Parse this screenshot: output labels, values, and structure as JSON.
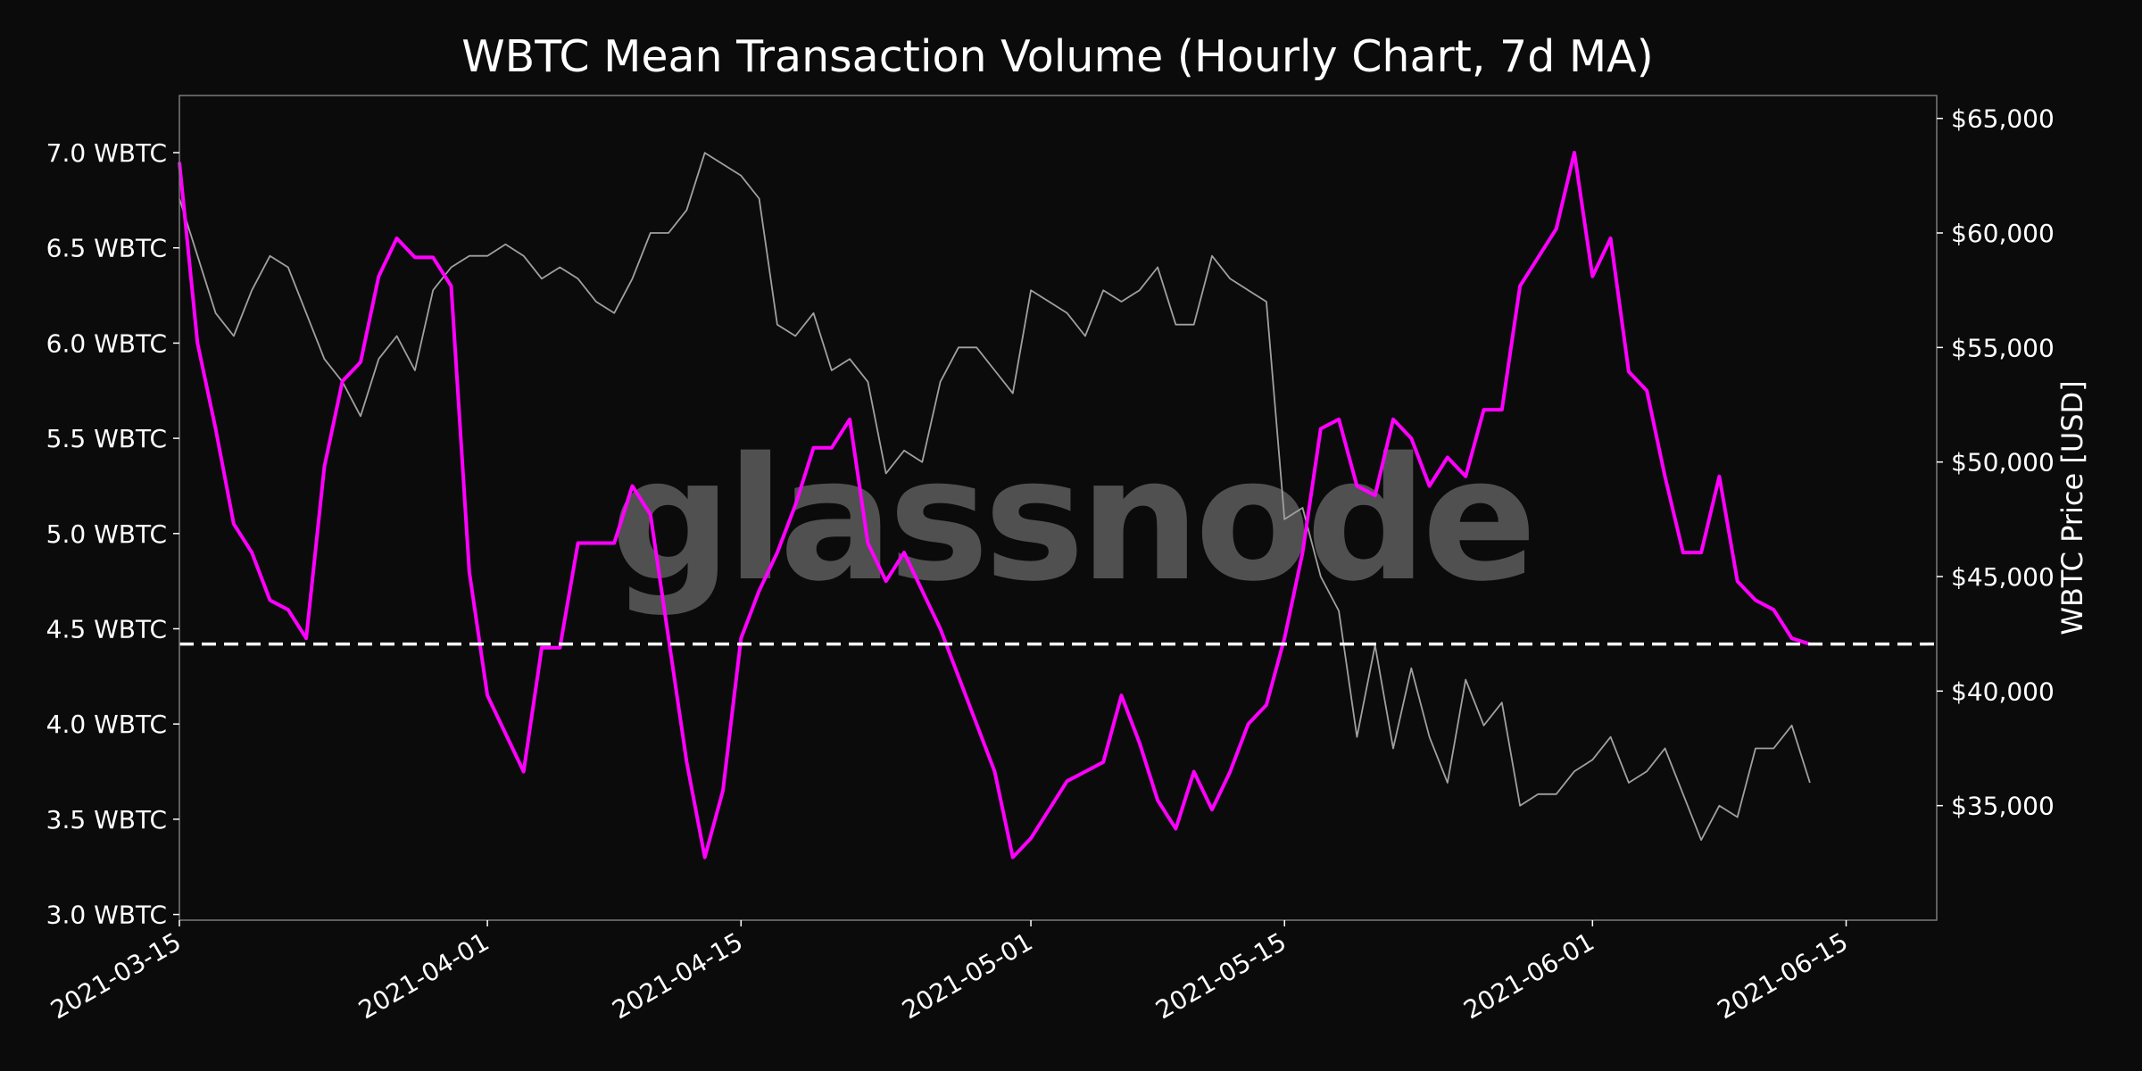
{
  "watermark": "glassnode",
  "chart_data": {
    "type": "line",
    "title": "WBTC Mean Transaction Volume (Hourly Chart, 7d MA)",
    "xlabel": "",
    "ylabel_left": "",
    "ylabel_right": "WBTC Price [USD]",
    "x_ticks": [
      "2021-03-15",
      "2021-04-01",
      "2021-04-15",
      "2021-05-01",
      "2021-05-15",
      "2021-06-01",
      "2021-06-15"
    ],
    "xlim": [
      "2021-03-15",
      "2021-06-20"
    ],
    "y_left_ticks": [
      "3.0 WBTC",
      "3.5 WBTC",
      "4.0 WBTC",
      "4.5 WBTC",
      "5.0 WBTC",
      "5.5 WBTC",
      "6.0 WBTC",
      "6.5 WBTC",
      "7.0 WBTC"
    ],
    "y_left_tick_values": [
      3.0,
      3.5,
      4.0,
      4.5,
      5.0,
      5.5,
      6.0,
      6.5,
      7.0
    ],
    "ylim_left": [
      2.97,
      7.3
    ],
    "y_right_ticks": [
      "$35,000",
      "$40,000",
      "$45,000",
      "$50,000",
      "$55,000",
      "$60,000",
      "$65,000"
    ],
    "y_right_tick_values": [
      35000,
      40000,
      45000,
      50000,
      55000,
      60000,
      65000
    ],
    "ylim_right": [
      30000,
      66000
    ],
    "grid": false,
    "colors": {
      "volume": "#ff00ff",
      "price": "#a0a0a0",
      "reference": "#ffffff",
      "background": "#0b0b0b"
    },
    "reference_line": {
      "y": 4.42,
      "style": "dashed"
    },
    "series": [
      {
        "axis": "left",
        "x": [
          "2021-03-15",
          "2021-03-16",
          "2021-03-17",
          "2021-03-18",
          "2021-03-19",
          "2021-03-20",
          "2021-03-21",
          "2021-03-22",
          "2021-03-23",
          "2021-03-24",
          "2021-03-25",
          "2021-03-26",
          "2021-03-27",
          "2021-03-28",
          "2021-03-29",
          "2021-03-30",
          "2021-03-31",
          "2021-04-01",
          "2021-04-02",
          "2021-04-03",
          "2021-04-04",
          "2021-04-05",
          "2021-04-06",
          "2021-04-07",
          "2021-04-08",
          "2021-04-09",
          "2021-04-10",
          "2021-04-11",
          "2021-04-12",
          "2021-04-13",
          "2021-04-14",
          "2021-04-15",
          "2021-04-16",
          "2021-04-17",
          "2021-04-18",
          "2021-04-19",
          "2021-04-20",
          "2021-04-21",
          "2021-04-22",
          "2021-04-23",
          "2021-04-24",
          "2021-04-25",
          "2021-04-26",
          "2021-04-27",
          "2021-04-28",
          "2021-04-29",
          "2021-04-30",
          "2021-05-01",
          "2021-05-02",
          "2021-05-03",
          "2021-05-04",
          "2021-05-05",
          "2021-05-06",
          "2021-05-07",
          "2021-05-08",
          "2021-05-09",
          "2021-05-10",
          "2021-05-11",
          "2021-05-12",
          "2021-05-13",
          "2021-05-14",
          "2021-05-15",
          "2021-05-16",
          "2021-05-17",
          "2021-05-18",
          "2021-05-19",
          "2021-05-20",
          "2021-05-21",
          "2021-05-22",
          "2021-05-23",
          "2021-05-24",
          "2021-05-25",
          "2021-05-26",
          "2021-05-27",
          "2021-05-28",
          "2021-05-29",
          "2021-05-30",
          "2021-05-31",
          "2021-06-01",
          "2021-06-02",
          "2021-06-03",
          "2021-06-04",
          "2021-06-05",
          "2021-06-06",
          "2021-06-07",
          "2021-06-08",
          "2021-06-09",
          "2021-06-10",
          "2021-06-11",
          "2021-06-12",
          "2021-06-13"
        ],
        "values": [
          6.95,
          6.0,
          5.55,
          5.05,
          4.9,
          4.65,
          4.6,
          4.45,
          5.35,
          5.8,
          5.9,
          6.35,
          6.55,
          6.45,
          6.45,
          6.3,
          4.8,
          4.15,
          3.95,
          3.75,
          4.4,
          4.4,
          4.95,
          4.95,
          4.95,
          5.25,
          5.1,
          4.45,
          3.8,
          3.3,
          3.65,
          4.45,
          4.7,
          4.9,
          5.15,
          5.45,
          5.45,
          5.6,
          4.95,
          4.75,
          4.9,
          4.7,
          4.5,
          4.25,
          4.0,
          3.75,
          3.3,
          3.4,
          3.55,
          3.7,
          3.75,
          3.8,
          4.15,
          3.9,
          3.6,
          3.45,
          3.75,
          3.55,
          3.75,
          4.0,
          4.1,
          4.45,
          4.9,
          5.55,
          5.6,
          5.25,
          5.2,
          5.6,
          5.5,
          5.25,
          5.4,
          5.3,
          5.65,
          5.65,
          6.3,
          6.45,
          6.6,
          7.0,
          6.35,
          6.55,
          5.85,
          5.75,
          5.3,
          4.9,
          4.9,
          5.3,
          4.75,
          4.65,
          4.6,
          4.45,
          4.42
        ]
      },
      {
        "axis": "right",
        "x": [
          "2021-03-15",
          "2021-03-16",
          "2021-03-17",
          "2021-03-18",
          "2021-03-19",
          "2021-03-20",
          "2021-03-21",
          "2021-03-22",
          "2021-03-23",
          "2021-03-24",
          "2021-03-25",
          "2021-03-26",
          "2021-03-27",
          "2021-03-28",
          "2021-03-29",
          "2021-03-30",
          "2021-03-31",
          "2021-04-01",
          "2021-04-02",
          "2021-04-03",
          "2021-04-04",
          "2021-04-05",
          "2021-04-06",
          "2021-04-07",
          "2021-04-08",
          "2021-04-09",
          "2021-04-10",
          "2021-04-11",
          "2021-04-12",
          "2021-04-13",
          "2021-04-14",
          "2021-04-15",
          "2021-04-16",
          "2021-04-17",
          "2021-04-18",
          "2021-04-19",
          "2021-04-20",
          "2021-04-21",
          "2021-04-22",
          "2021-04-23",
          "2021-04-24",
          "2021-04-25",
          "2021-04-26",
          "2021-04-27",
          "2021-04-28",
          "2021-04-29",
          "2021-04-30",
          "2021-05-01",
          "2021-05-02",
          "2021-05-03",
          "2021-05-04",
          "2021-05-05",
          "2021-05-06",
          "2021-05-07",
          "2021-05-08",
          "2021-05-09",
          "2021-05-10",
          "2021-05-11",
          "2021-05-12",
          "2021-05-13",
          "2021-05-14",
          "2021-05-15",
          "2021-05-16",
          "2021-05-17",
          "2021-05-18",
          "2021-05-19",
          "2021-05-20",
          "2021-05-21",
          "2021-05-22",
          "2021-05-23",
          "2021-05-24",
          "2021-05-25",
          "2021-05-26",
          "2021-05-27",
          "2021-05-28",
          "2021-05-29",
          "2021-05-30",
          "2021-05-31",
          "2021-06-01",
          "2021-06-02",
          "2021-06-03",
          "2021-06-04",
          "2021-06-05",
          "2021-06-06",
          "2021-06-07",
          "2021-06-08",
          "2021-06-09",
          "2021-06-10",
          "2021-06-11",
          "2021-06-12",
          "2021-06-13"
        ],
        "values": [
          61500,
          59000,
          56500,
          55500,
          57500,
          59000,
          58500,
          56500,
          54500,
          53500,
          52000,
          54500,
          55500,
          54000,
          57500,
          58500,
          59000,
          59000,
          59500,
          59000,
          58000,
          58500,
          58000,
          57000,
          56500,
          58000,
          60000,
          60000,
          61000,
          63500,
          63000,
          62500,
          61500,
          56000,
          55500,
          56500,
          54000,
          54500,
          53500,
          49500,
          50500,
          50000,
          53500,
          55000,
          55000,
          54000,
          53000,
          57500,
          57000,
          56500,
          55500,
          57500,
          57000,
          57500,
          58500,
          56000,
          56000,
          59000,
          58000,
          57500,
          57000,
          47500,
          48000,
          45000,
          43500,
          38000,
          42000,
          37500,
          41000,
          38000,
          36000,
          40500,
          38500,
          39500,
          35000,
          35500,
          35500,
          36500,
          37000,
          38000,
          36000,
          36500,
          37500,
          35500,
          33500,
          35000,
          34500,
          37500,
          37500,
          38500,
          36000
        ]
      }
    ]
  }
}
